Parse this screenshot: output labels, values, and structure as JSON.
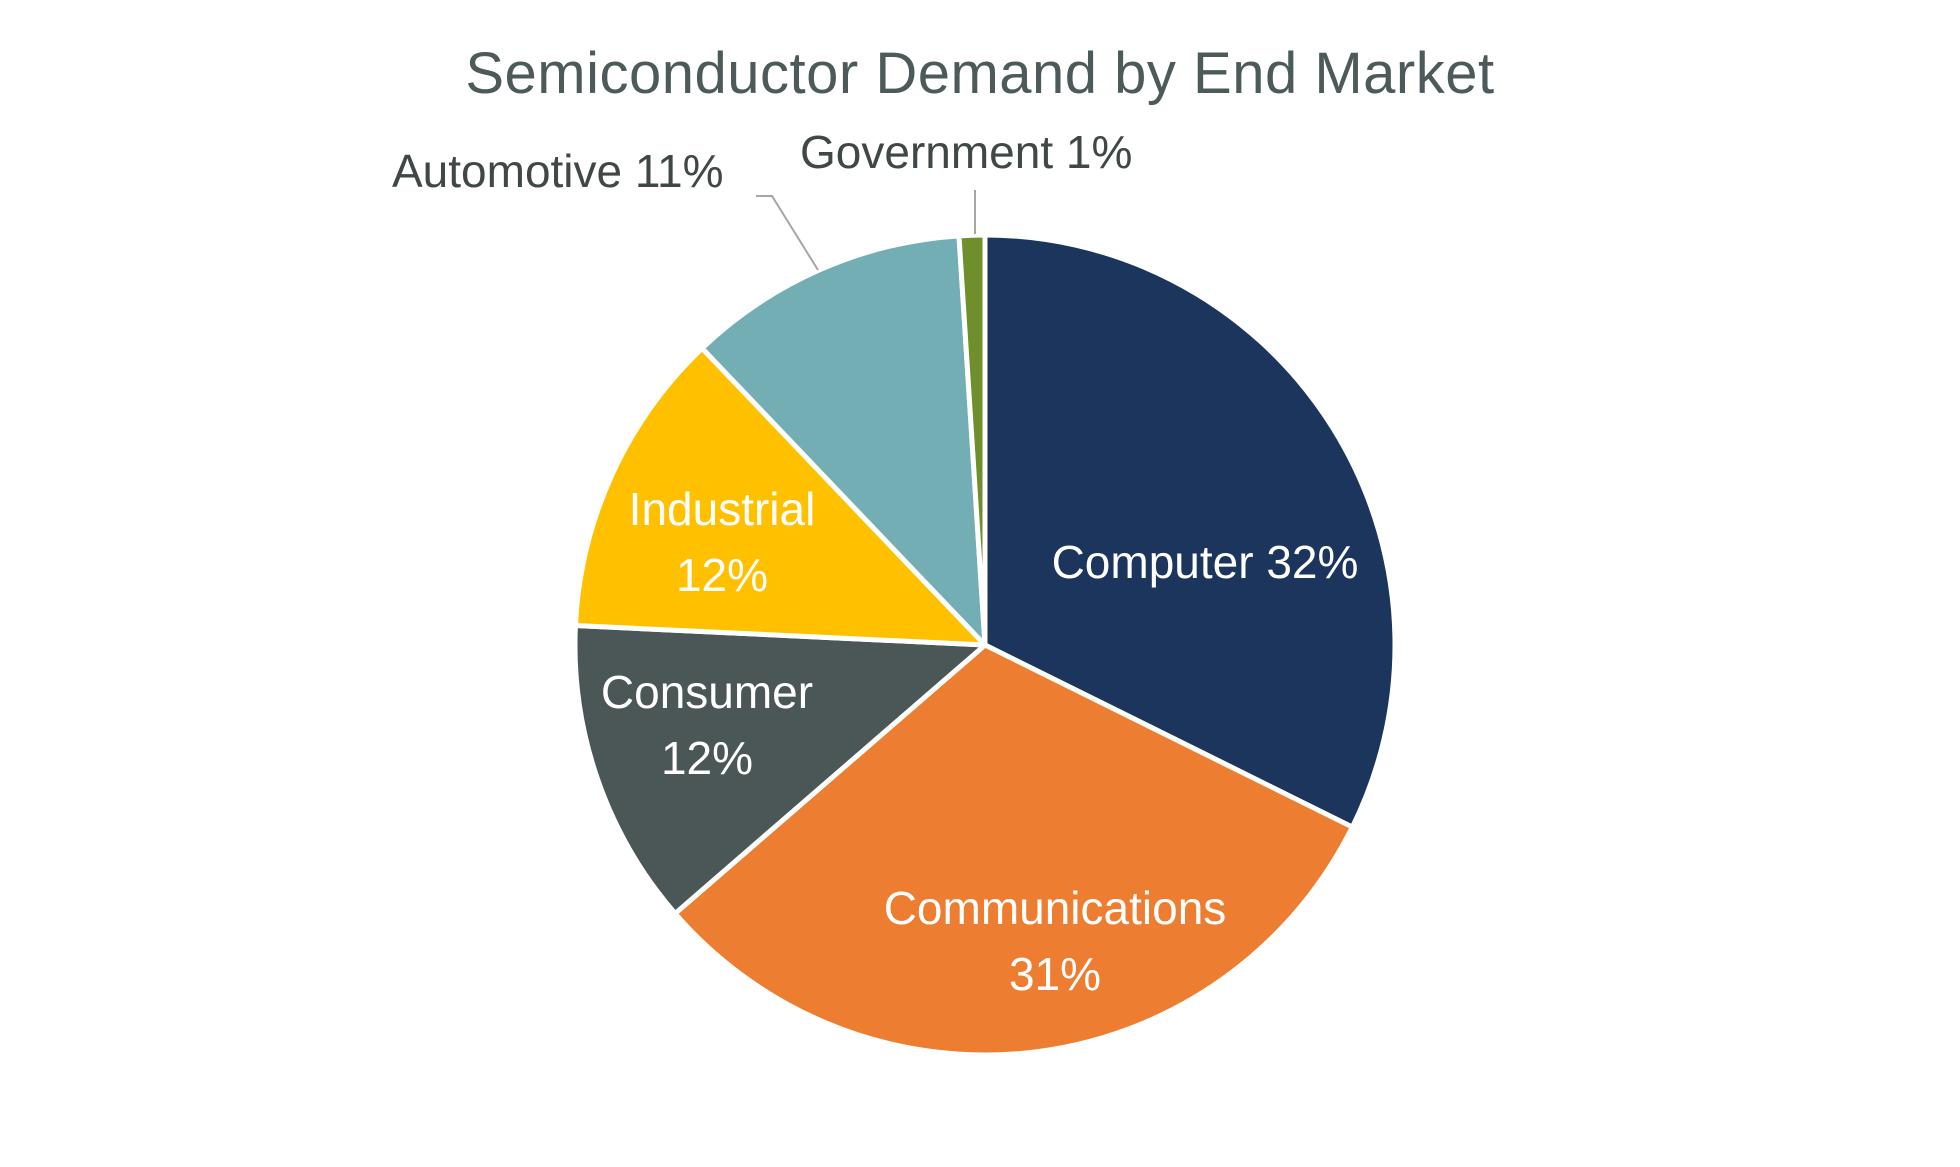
{
  "chart_data": {
    "type": "pie",
    "title": "Semiconductor Demand by End Market",
    "slices": [
      {
        "name": "Computer",
        "value": 32,
        "color": "#1b355c",
        "label_lines": [
          "Computer 32%"
        ],
        "label_color": "#ffffff",
        "label_placement": "inside"
      },
      {
        "name": "Communications",
        "value": 31,
        "color": "#ed7d31",
        "label_lines": [
          "Communications",
          "31%"
        ],
        "label_color": "#ffffff",
        "label_placement": "inside"
      },
      {
        "name": "Consumer",
        "value": 12,
        "color": "#4b5657",
        "label_lines": [
          "Consumer",
          "12%"
        ],
        "label_color": "#ffffff",
        "label_placement": "inside"
      },
      {
        "name": "Industrial",
        "value": 12,
        "color": "#ffc000",
        "label_lines": [
          "Industrial",
          "12%"
        ],
        "label_color": "#ffffff",
        "label_placement": "inside"
      },
      {
        "name": "Automotive",
        "value": 11,
        "color": "#74aeb5",
        "label_lines": [
          "Automotive 11%"
        ],
        "label_color": "#3f4747",
        "label_placement": "outside"
      },
      {
        "name": "Government",
        "value": 1,
        "color": "#6e8f2a",
        "label_lines": [
          "Government 1%"
        ],
        "label_color": "#3f4747",
        "label_placement": "outside"
      }
    ],
    "start_angle_deg": 0,
    "direction": "clockwise",
    "legend": "none"
  }
}
